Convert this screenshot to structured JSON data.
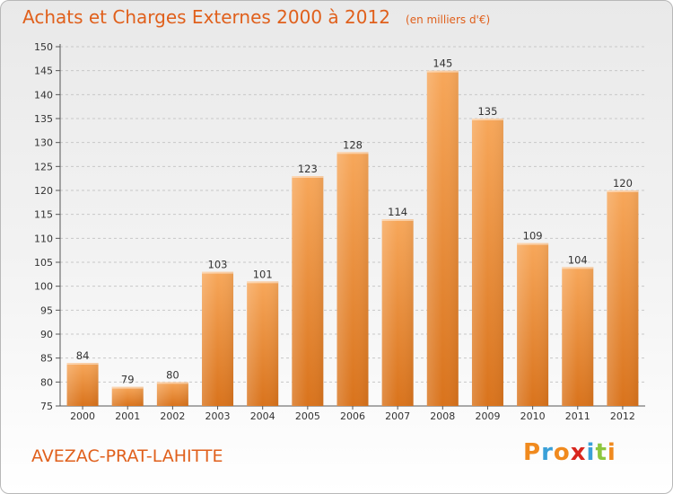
{
  "header": {
    "title": "Achats et Charges Externes 2000 à 2012",
    "subtitle": "(en milliers d'€)"
  },
  "footer": {
    "place": "AVEZAC-PRAT-LAHITTE",
    "logo_text": "Proxiti"
  },
  "colors": {
    "title": "#e0601c",
    "bar_top": "#f7a75a",
    "bar_bottom": "#d9731c",
    "grid": "#c8c8c8",
    "logo_letters": [
      "#f08a1e",
      "#3aa0d8",
      "#f08a1e",
      "#d8261e",
      "#3aa0d8",
      "#8cc63e",
      "#f08a1e"
    ]
  },
  "chart_data": {
    "type": "bar",
    "title": "Achats et Charges Externes 2000 à 2012",
    "subtitle": "(en milliers d'€)",
    "categories": [
      "2000",
      "2001",
      "2002",
      "2003",
      "2004",
      "2005",
      "2006",
      "2007",
      "2008",
      "2009",
      "2010",
      "2011",
      "2012"
    ],
    "values": [
      84,
      79,
      80,
      103,
      101,
      123,
      128,
      114,
      145,
      135,
      109,
      104,
      120
    ],
    "data_labels": [
      "84",
      "79",
      "80",
      "103",
      "101",
      "123",
      "128",
      "114",
      "145",
      "135",
      "109",
      "104",
      "120"
    ],
    "y_ticks": [
      "75",
      "80",
      "85",
      "90",
      "95",
      "100",
      "105",
      "110",
      "115",
      "120",
      "125",
      "130",
      "135",
      "140",
      "145",
      "150"
    ],
    "ylim": [
      75,
      150
    ],
    "grid": "horizontal, dashed",
    "legend": "none",
    "xlabel": "",
    "ylabel": ""
  }
}
